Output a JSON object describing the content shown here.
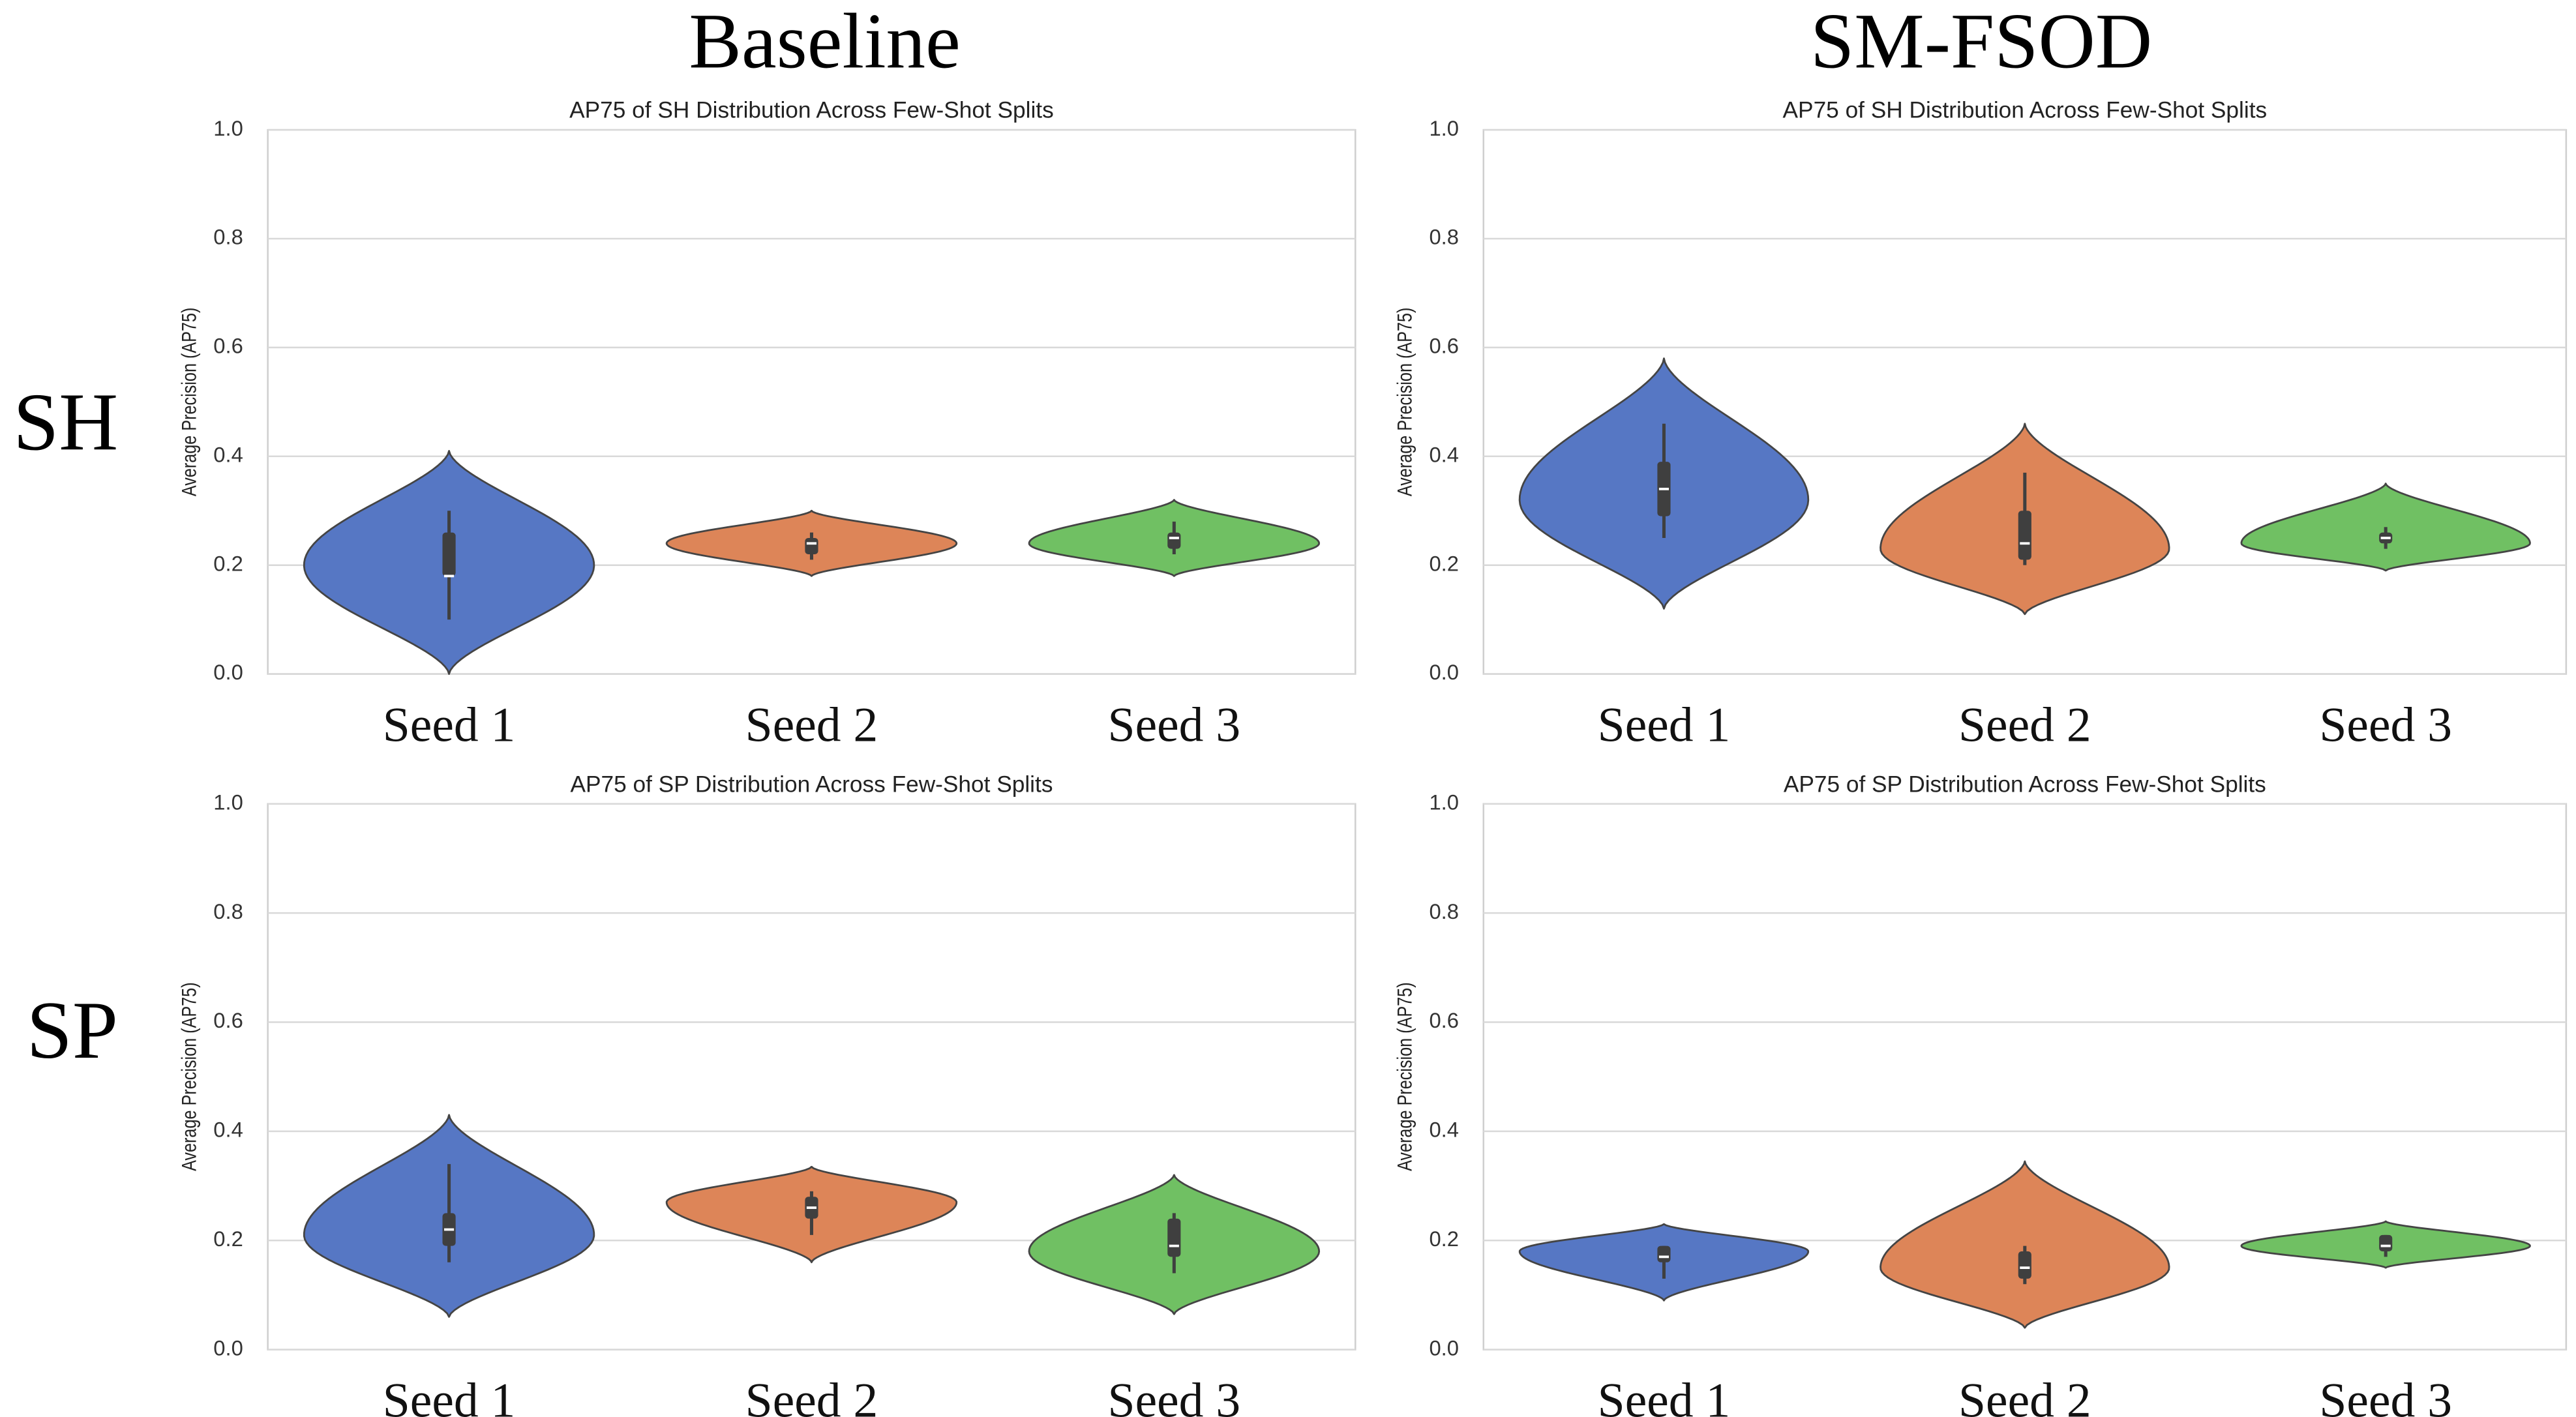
{
  "columns": [
    "Baseline",
    "SM-FSOD"
  ],
  "rows": [
    "SH",
    "SP"
  ],
  "chart_data": [
    {
      "type": "violin",
      "title": "AP75 of SH Distribution Across Few-Shot Splits",
      "ylabel": "Average Precision (AP75)",
      "categories": [
        "Seed 1",
        "Seed 2",
        "Seed 3"
      ],
      "ylim": [
        0,
        1
      ],
      "yticks": [
        {
          "value": 0,
          "label": "0.0"
        },
        0.2,
        0.4,
        0.6,
        0.8,
        {
          "value": 1,
          "label": "1.0"
        }
      ],
      "grid": true,
      "violins": [
        {
          "color": "#5677c4",
          "min": 0.0,
          "max": 0.41,
          "mode": 0.2,
          "q1": 0.18,
          "median": 0.18,
          "q3": 0.26,
          "whisker_low": 0.1,
          "whisker_high": 0.3
        },
        {
          "color": "#dd8558",
          "min": 0.18,
          "max": 0.3,
          "mode": 0.24,
          "q1": 0.22,
          "median": 0.24,
          "q3": 0.25,
          "whisker_low": 0.21,
          "whisker_high": 0.26
        },
        {
          "color": "#70c063",
          "min": 0.18,
          "max": 0.32,
          "mode": 0.24,
          "q1": 0.23,
          "median": 0.25,
          "q3": 0.26,
          "whisker_low": 0.22,
          "whisker_high": 0.28
        }
      ]
    },
    {
      "type": "violin",
      "title": "AP75 of SH Distribution Across Few-Shot Splits",
      "ylabel": "Average Precision (AP75)",
      "categories": [
        "Seed 1",
        "Seed 2",
        "Seed 3"
      ],
      "ylim": [
        0,
        1
      ],
      "yticks": [
        {
          "value": 0,
          "label": "0.0"
        },
        0.2,
        0.4,
        0.6,
        0.8,
        {
          "value": 1,
          "label": "1.0"
        }
      ],
      "grid": true,
      "violins": [
        {
          "color": "#5677c4",
          "min": 0.12,
          "max": 0.58,
          "mode": 0.32,
          "q1": 0.29,
          "median": 0.34,
          "q3": 0.39,
          "whisker_low": 0.25,
          "whisker_high": 0.46
        },
        {
          "color": "#dd8558",
          "min": 0.11,
          "max": 0.46,
          "mode": 0.23,
          "q1": 0.21,
          "median": 0.24,
          "q3": 0.3,
          "whisker_low": 0.2,
          "whisker_high": 0.37
        },
        {
          "color": "#70c063",
          "min": 0.19,
          "max": 0.35,
          "mode": 0.24,
          "q1": 0.24,
          "median": 0.25,
          "q3": 0.26,
          "whisker_low": 0.23,
          "whisker_high": 0.27
        }
      ]
    },
    {
      "type": "violin",
      "title": "AP75 of SP Distribution Across Few-Shot Splits",
      "ylabel": "Average Precision (AP75)",
      "categories": [
        "Seed 1",
        "Seed 2",
        "Seed 3"
      ],
      "ylim": [
        0,
        1
      ],
      "yticks": [
        {
          "value": 0,
          "label": "0.0"
        },
        0.2,
        0.4,
        0.6,
        0.8,
        {
          "value": 1,
          "label": "1.0"
        }
      ],
      "grid": true,
      "violins": [
        {
          "color": "#5677c4",
          "min": 0.06,
          "max": 0.43,
          "mode": 0.21,
          "q1": 0.19,
          "median": 0.22,
          "q3": 0.25,
          "whisker_low": 0.16,
          "whisker_high": 0.34
        },
        {
          "color": "#dd8558",
          "min": 0.16,
          "max": 0.335,
          "mode": 0.27,
          "q1": 0.24,
          "median": 0.26,
          "q3": 0.28,
          "whisker_low": 0.21,
          "whisker_high": 0.29
        },
        {
          "color": "#70c063",
          "min": 0.065,
          "max": 0.32,
          "mode": 0.18,
          "q1": 0.17,
          "median": 0.19,
          "q3": 0.24,
          "whisker_low": 0.14,
          "whisker_high": 0.25
        }
      ]
    },
    {
      "type": "violin",
      "title": "AP75 of SP Distribution Across Few-Shot Splits",
      "ylabel": "Average Precision (AP75)",
      "categories": [
        "Seed 1",
        "Seed 2",
        "Seed 3"
      ],
      "ylim": [
        0,
        1
      ],
      "yticks": [
        {
          "value": 0,
          "label": "0.0"
        },
        0.2,
        0.4,
        0.6,
        0.8,
        {
          "value": 1,
          "label": "1.0"
        }
      ],
      "grid": true,
      "violins": [
        {
          "color": "#5677c4",
          "min": 0.09,
          "max": 0.23,
          "mode": 0.18,
          "q1": 0.16,
          "median": 0.17,
          "q3": 0.19,
          "whisker_low": 0.13,
          "whisker_high": 0.19
        },
        {
          "color": "#dd8558",
          "min": 0.04,
          "max": 0.345,
          "mode": 0.15,
          "q1": 0.13,
          "median": 0.15,
          "q3": 0.18,
          "whisker_low": 0.12,
          "whisker_high": 0.19
        },
        {
          "color": "#70c063",
          "min": 0.15,
          "max": 0.235,
          "mode": 0.19,
          "q1": 0.18,
          "median": 0.19,
          "q3": 0.21,
          "whisker_low": 0.17,
          "whisker_high": 0.21
        }
      ]
    }
  ]
}
